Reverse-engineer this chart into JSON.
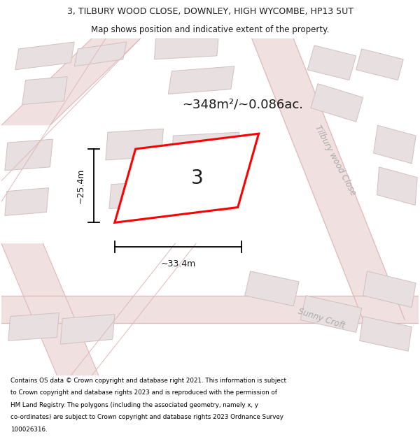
{
  "title_line1": "3, TILBURY WOOD CLOSE, DOWNLEY, HIGH WYCOMBE, HP13 5UT",
  "title_line2": "Map shows position and indicative extent of the property.",
  "area_text": "~348m²/~0.086ac.",
  "label_number": "3",
  "dim_width": "~33.4m",
  "dim_height": "~25.4m",
  "street_label1": "Tilbury wood Close",
  "street_label2": "Sunny Croft",
  "footer_text": "Contains OS data © Crown copyright and database right 2021. This information is subject to Crown copyright and database rights 2023 and is reproduced with the permission of HM Land Registry. The polygons (including the associated geometry, namely x, y co-ordinates) are subject to Crown copyright and database rights 2023 Ordnance Survey 100026316.",
  "bg_color": "#f7f3f3",
  "highlight_color": "#ff0000",
  "building_fill": "#e8e0e0",
  "building_edge": "#d0c0c0",
  "road_fill": "#f0e0e0",
  "road_line": "#e0b8b8",
  "label_color": "#aaaaaa",
  "dark_text": "#1a1a1a",
  "figsize": [
    6.0,
    6.25
  ],
  "dpi": 100
}
